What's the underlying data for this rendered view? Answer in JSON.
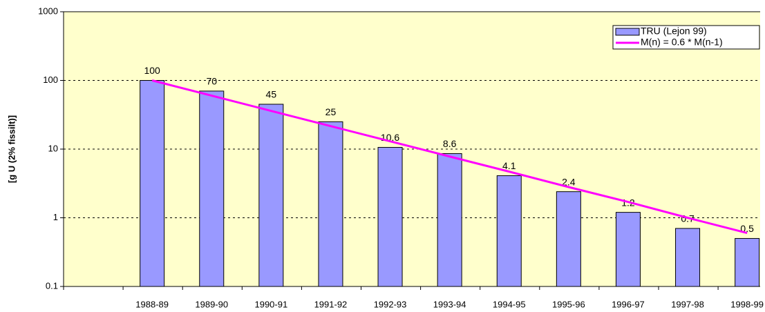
{
  "chart_data": {
    "type": "bar",
    "y_label": "[g U (2% fissilt)]",
    "categories": [
      null,
      "1988-89",
      "1989-90",
      "1990-91",
      "1991-92",
      "1992-93",
      "1993-94",
      "1994-95",
      "1995-96",
      "1996-97",
      "1997-98",
      "1998-99"
    ],
    "series": [
      {
        "name": "TRU (Lejon 99)",
        "type": "bar",
        "color": "#9999ff",
        "values": [
          null,
          100,
          70,
          45,
          25,
          10.6,
          8.6,
          4.1,
          2.4,
          1.2,
          0.7,
          0.5
        ]
      },
      {
        "name": "M(n) = 0.6 * M(n-1)",
        "type": "line",
        "color": "#ff00ff",
        "values": [
          null,
          100,
          60,
          36,
          21.6,
          13,
          7.8,
          4.7,
          2.8,
          1.7,
          1.0,
          0.6
        ]
      }
    ],
    "log_scale": true,
    "ylim": [
      0.1,
      1000
    ],
    "yticks": [
      0.1,
      1,
      10,
      100,
      1000
    ],
    "grid": true,
    "legend": "top-right",
    "plot_background": "#ffffcc"
  }
}
